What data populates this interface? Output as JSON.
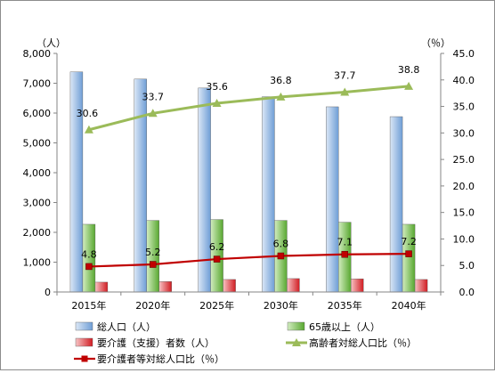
{
  "chart_data": {
    "type": "bar",
    "categories": [
      "2015年",
      "2020年",
      "2025年",
      "2030年",
      "2035年",
      "2040年"
    ],
    "left_axis": {
      "unit": "（人）",
      "min": 0,
      "max": 8000,
      "step": 1000,
      "ticks": [
        "0",
        "1,000",
        "2,000",
        "3,000",
        "4,000",
        "5,000",
        "6,000",
        "7,000",
        "8,000"
      ]
    },
    "right_axis": {
      "unit": "（％）",
      "min": 0,
      "max": 45,
      "step": 5,
      "ticks": [
        "0.0",
        "5.0",
        "10.0",
        "15.0",
        "20.0",
        "25.0",
        "30.0",
        "35.0",
        "40.0",
        "45.0"
      ]
    },
    "series": [
      {
        "name": "総人口（人）",
        "type": "bar",
        "axis": "left",
        "color": "#8eb4e3",
        "values": [
          7380,
          7140,
          6840,
          6550,
          6210,
          5880
        ]
      },
      {
        "name": "65歳以上（人）",
        "type": "bar",
        "axis": "left",
        "color": "#77c046",
        "values": [
          2270,
          2400,
          2430,
          2400,
          2340,
          2270
        ]
      },
      {
        "name": "要介護（支援）者数（人）",
        "type": "bar",
        "axis": "left",
        "color": "#e0252b",
        "values": [
          330,
          350,
          420,
          450,
          440,
          420
        ]
      },
      {
        "name": "高齢者対総人口比（％）",
        "type": "line",
        "axis": "right",
        "color": "#9bbb59",
        "marker": "triangle",
        "values": [
          30.6,
          33.7,
          35.6,
          36.8,
          37.7,
          38.8
        ],
        "labels": [
          "30.6",
          "33.7",
          "35.6",
          "36.8",
          "37.7",
          "38.8"
        ]
      },
      {
        "name": "要介護者等対総人口比（％）",
        "type": "line",
        "axis": "right",
        "color": "#c00000",
        "marker": "square",
        "values": [
          4.8,
          5.2,
          6.2,
          6.8,
          7.1,
          7.2
        ],
        "labels": [
          "4.8",
          "5.2",
          "6.2",
          "6.8",
          "7.1",
          "7.2"
        ]
      }
    ],
    "legend": [
      "総人口（人）",
      "65歳以上（人）",
      "要介護（支援）者数（人）",
      "高齢者対総人口比（％）",
      "要介護者等対総人口比（％）"
    ],
    "legend_position": "bottom",
    "grid": false
  }
}
